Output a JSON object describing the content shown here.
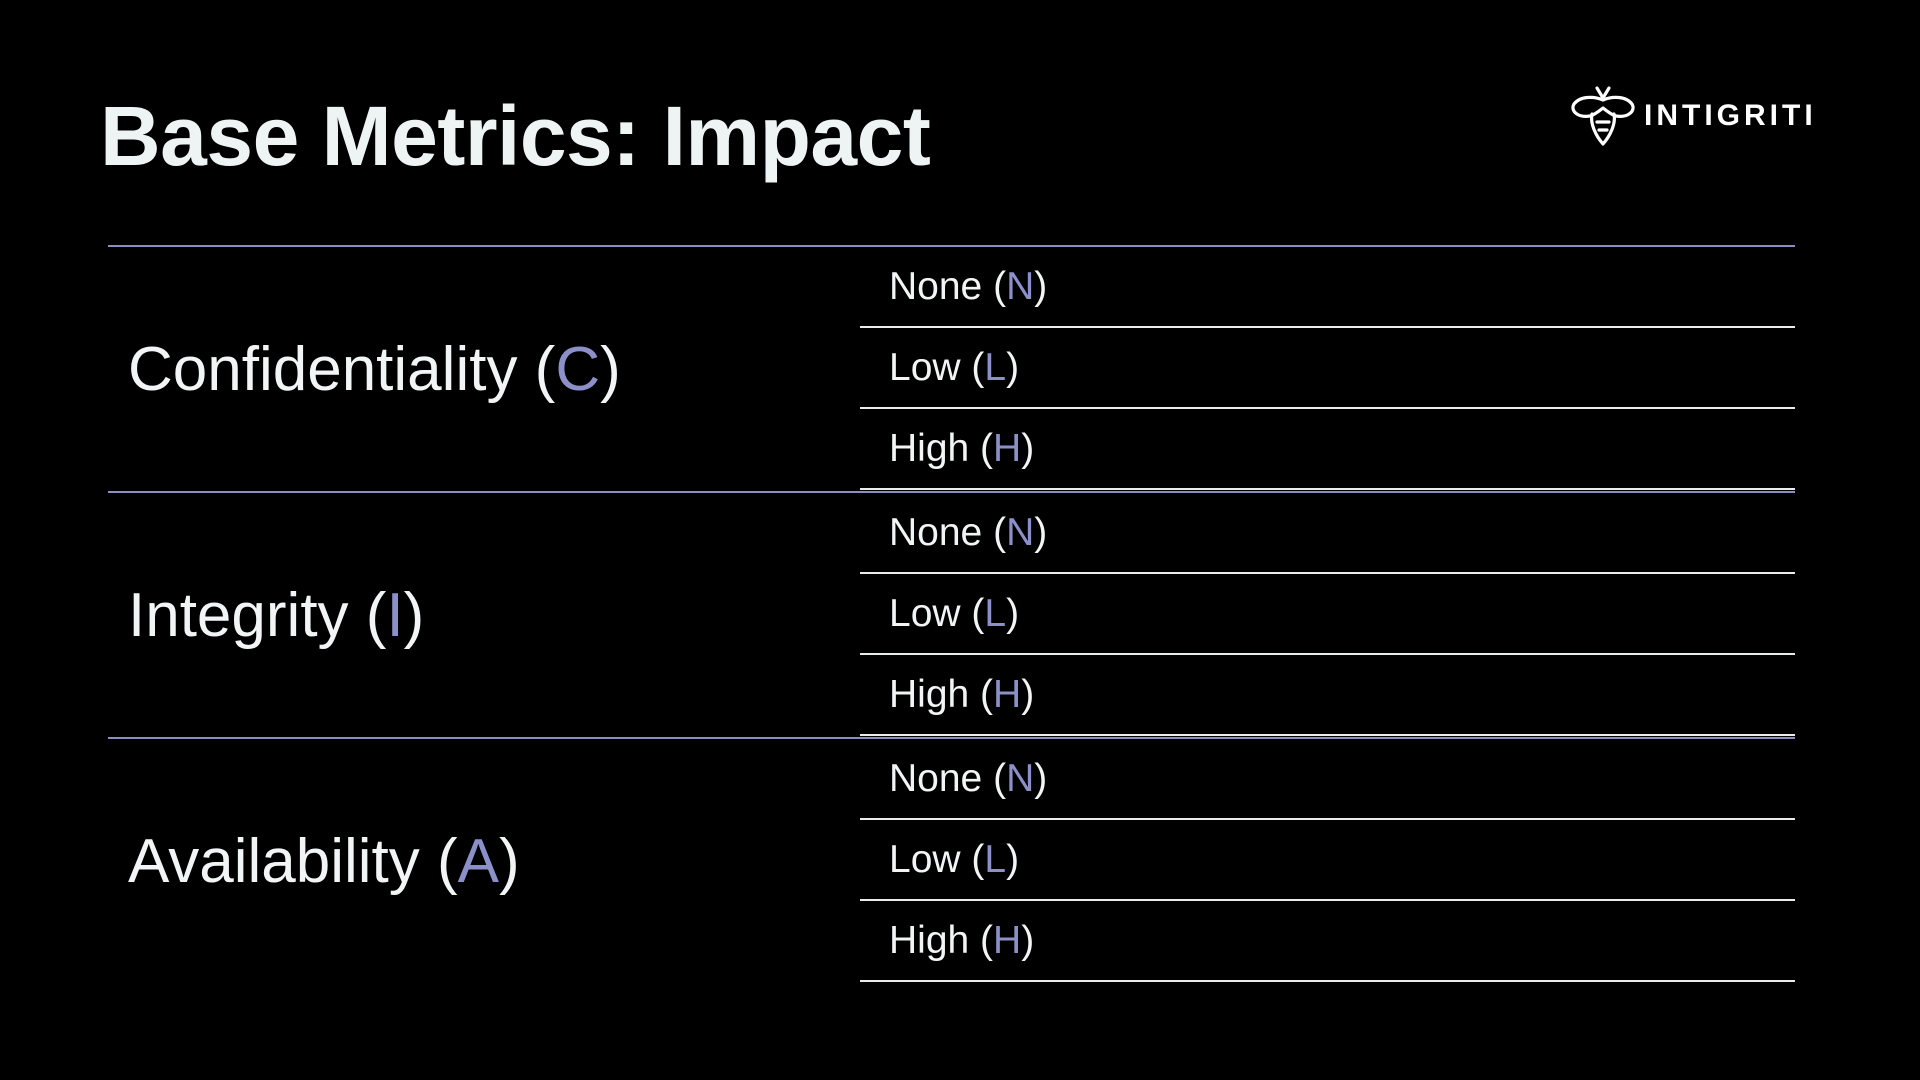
{
  "slide": {
    "title": "Base Metrics: Impact",
    "logo_text": "INTIGRITI",
    "accent_color": "#8c90c8",
    "divider_color": "#8b8fbf"
  },
  "metrics": [
    {
      "name": "Confidentiality",
      "abbr": "C",
      "options": [
        {
          "label": "None",
          "abbr": "N"
        },
        {
          "label": "Low",
          "abbr": "L"
        },
        {
          "label": "High",
          "abbr": "H"
        }
      ]
    },
    {
      "name": "Integrity",
      "abbr": "I",
      "options": [
        {
          "label": "None",
          "abbr": "N"
        },
        {
          "label": "Low",
          "abbr": "L"
        },
        {
          "label": "High",
          "abbr": "H"
        }
      ]
    },
    {
      "name": "Availability",
      "abbr": "A",
      "options": [
        {
          "label": "None",
          "abbr": "N"
        },
        {
          "label": "Low",
          "abbr": "L"
        },
        {
          "label": "High",
          "abbr": "H"
        }
      ]
    }
  ]
}
